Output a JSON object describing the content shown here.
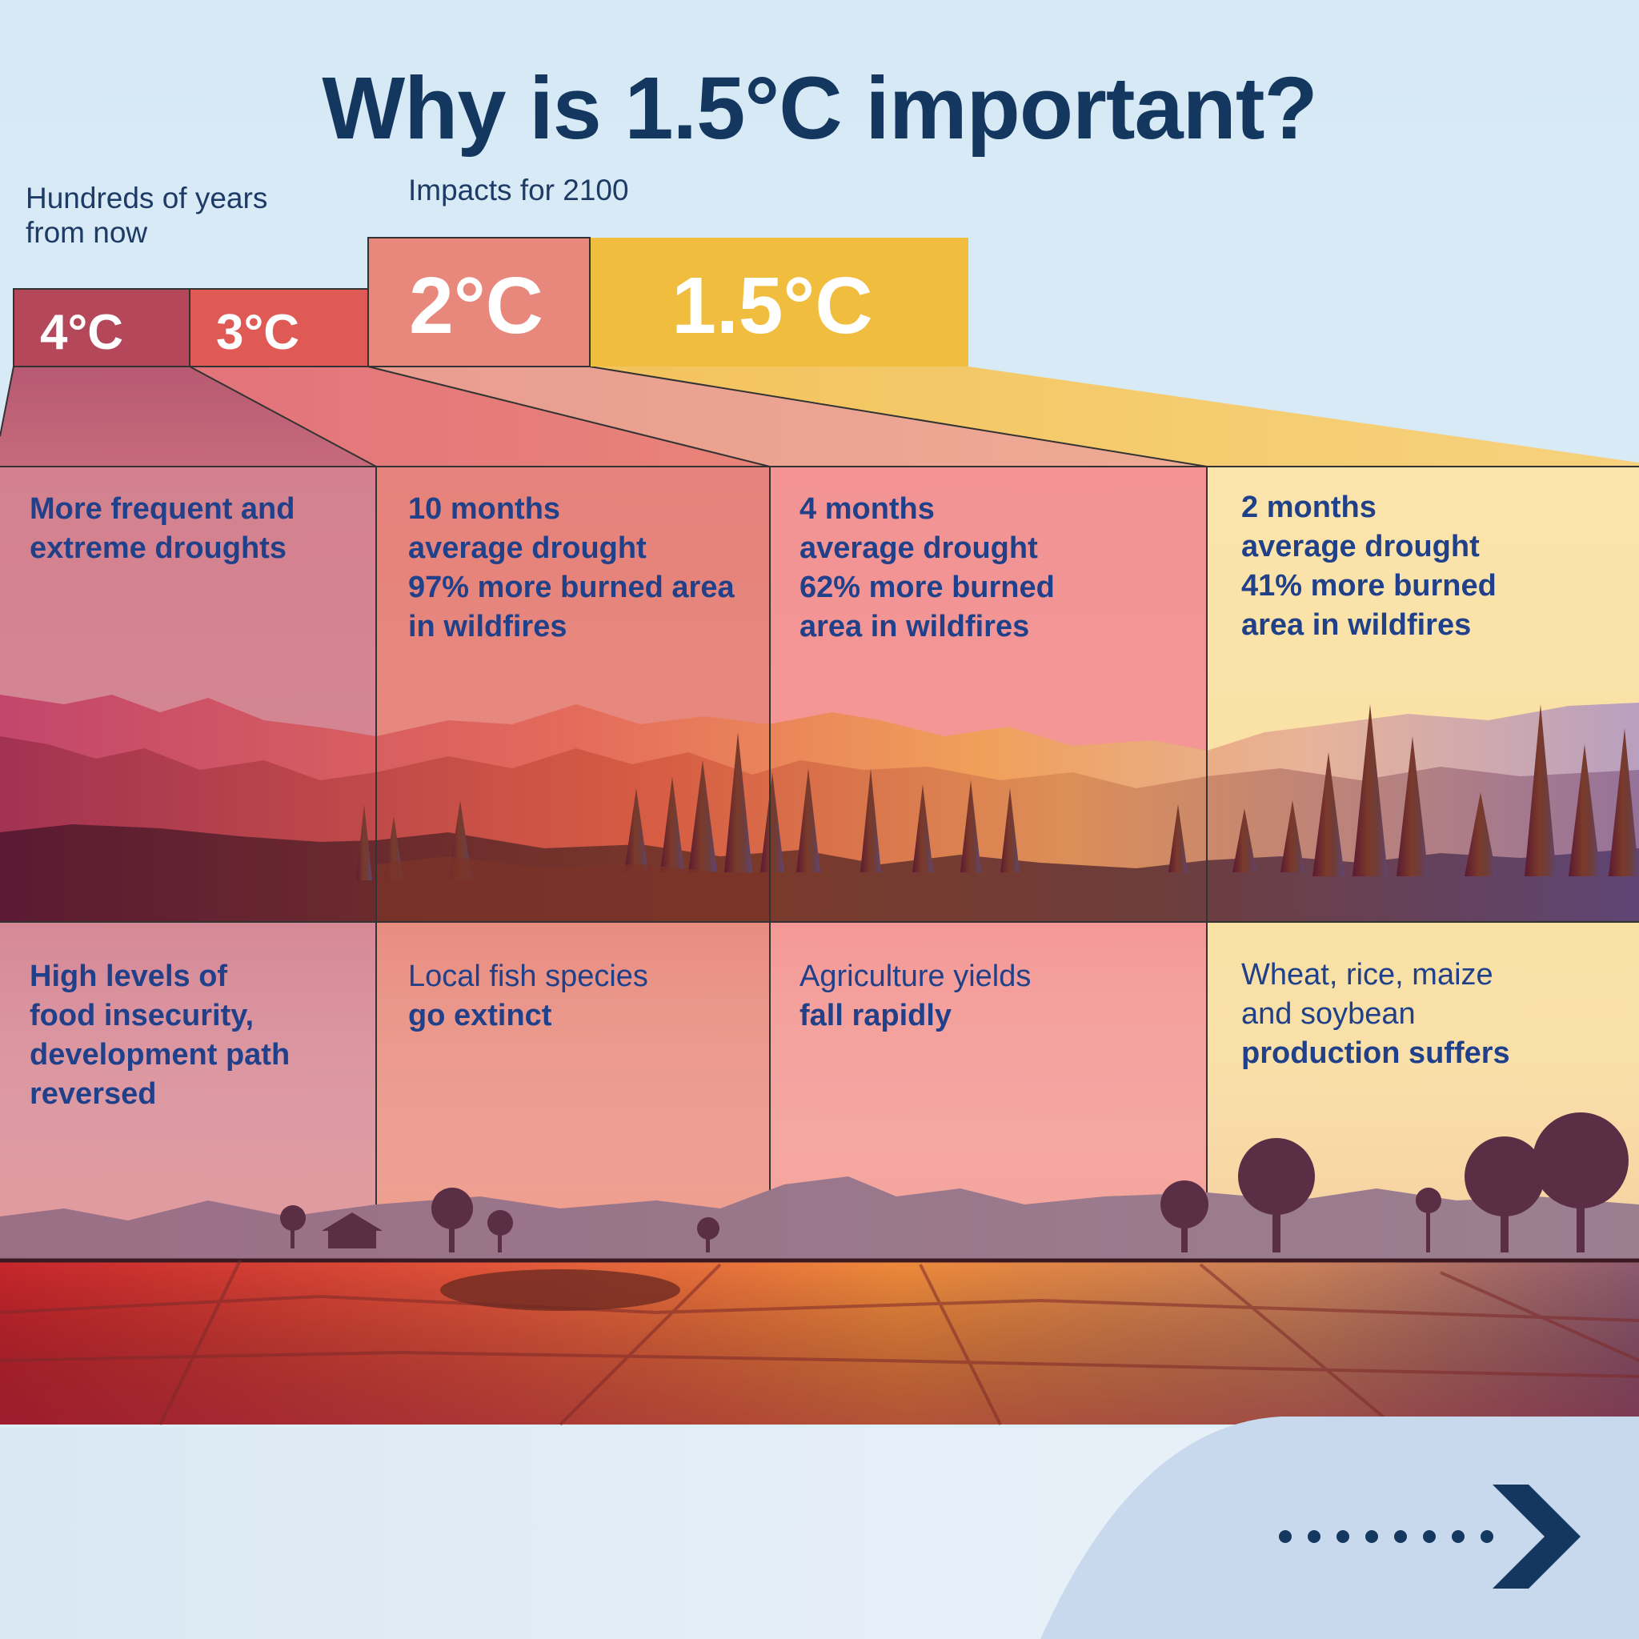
{
  "title": "Why is 1.5°C important?",
  "labels": {
    "far_future_line1": "Hundreds of years",
    "far_future_line2": "from now",
    "near_term": "Impacts for 2100"
  },
  "scenarios": [
    {
      "temp": "4°C",
      "color": "#b4475a",
      "drought_lines": [
        "More frequent and",
        "extreme droughts"
      ],
      "food_lines": [
        {
          "text": "High levels of",
          "bold": true
        },
        {
          "text": "food insecurity,",
          "bold": true
        },
        {
          "text": "development path",
          "bold": true
        },
        {
          "text": "reversed",
          "bold": true
        }
      ]
    },
    {
      "temp": "3°C",
      "color": "#e05a55",
      "drought_lines": [
        "10 months",
        "average drought",
        "97% more burned area",
        "in wildfires"
      ],
      "food_lines": [
        {
          "text": "Local fish species",
          "bold": false
        },
        {
          "text": "go extinct",
          "bold": true
        }
      ]
    },
    {
      "temp": "2°C",
      "color": "#e8887c",
      "drought_lines": [
        "4 months",
        "average drought",
        "62% more burned",
        "area in wildfires"
      ],
      "food_lines": [
        {
          "text": "Agriculture yields",
          "bold": false
        },
        {
          "text": "fall rapidly",
          "bold": true
        }
      ]
    },
    {
      "temp": "1.5°C",
      "color": "#f1bd3f",
      "drought_lines": [
        "2 months",
        "average drought",
        "41% more burned",
        "area in wildfires"
      ],
      "food_lines": [
        {
          "text": "Wheat, rice, maize",
          "bold": false
        },
        {
          "text": "and soybean",
          "bold": false
        },
        {
          "text": "production suffers",
          "bold": true
        }
      ]
    }
  ],
  "colors": {
    "title": "#14375f",
    "panel_text": "#20418a",
    "background": "#d6e9f5"
  },
  "next_icon": "arrow-next-icon"
}
